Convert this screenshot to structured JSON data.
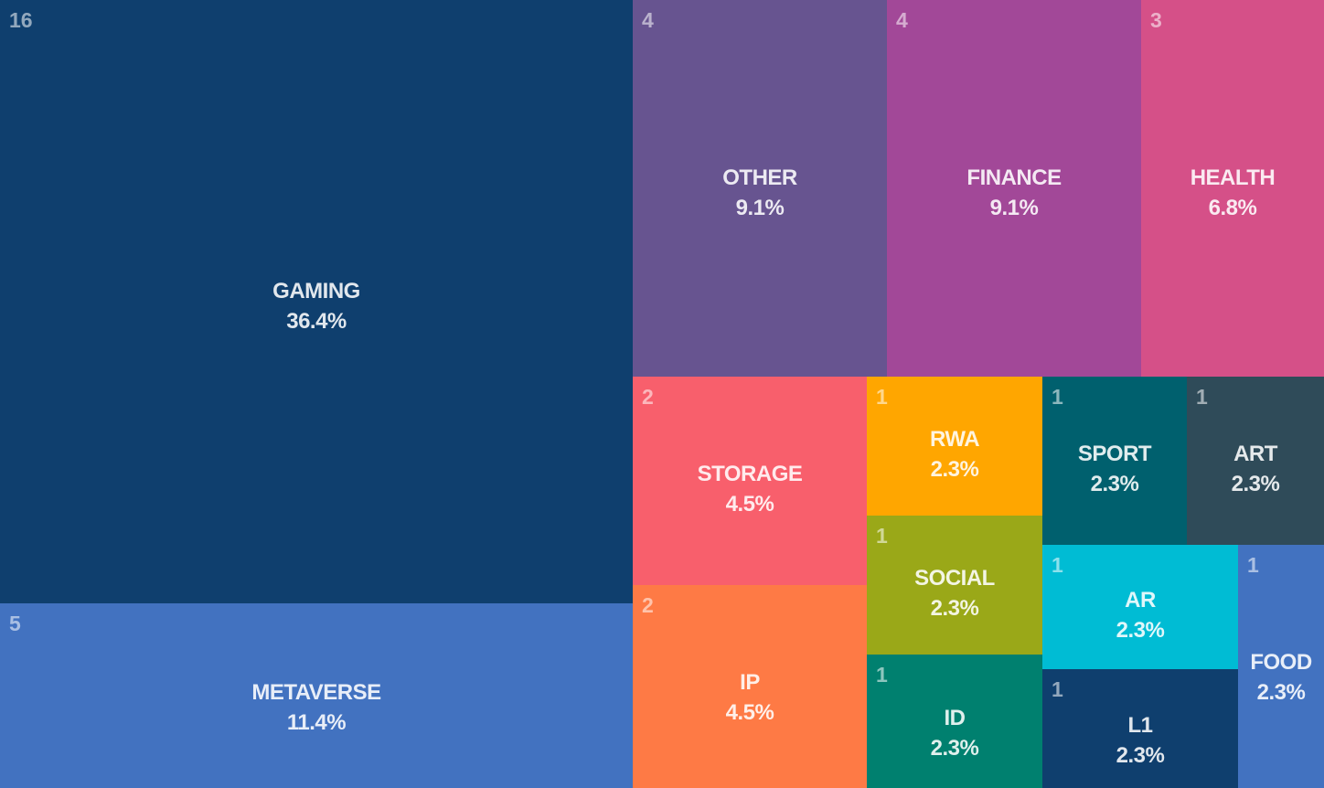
{
  "chart_data": {
    "type": "treemap",
    "title": "",
    "items": [
      {
        "name": "GAMING",
        "count": 16,
        "share": "36.4%",
        "color": "#0f3f6e"
      },
      {
        "name": "METAVERSE",
        "count": 5,
        "share": "11.4%",
        "color": "#4272c0"
      },
      {
        "name": "OTHER",
        "count": 4,
        "share": "9.1%",
        "color": "#675490"
      },
      {
        "name": "FINANCE",
        "count": 4,
        "share": "9.1%",
        "color": "#a24898"
      },
      {
        "name": "HEALTH",
        "count": 3,
        "share": "6.8%",
        "color": "#d55088"
      },
      {
        "name": "STORAGE",
        "count": 2,
        "share": "4.5%",
        "color": "#f85f6c"
      },
      {
        "name": "IP",
        "count": 2,
        "share": "4.5%",
        "color": "#fe7a45"
      },
      {
        "name": "RWA",
        "count": 1,
        "share": "2.3%",
        "color": "#ffa600"
      },
      {
        "name": "SOCIAL",
        "count": 1,
        "share": "2.3%",
        "color": "#9aa818"
      },
      {
        "name": "ID",
        "count": 1,
        "share": "2.3%",
        "color": "#00806f"
      },
      {
        "name": "SPORT",
        "count": 1,
        "share": "2.3%",
        "color": "#00606e"
      },
      {
        "name": "ART",
        "count": 1,
        "share": "2.3%",
        "color": "#2f4b59"
      },
      {
        "name": "AR",
        "count": 1,
        "share": "2.3%",
        "color": "#00bcd4"
      },
      {
        "name": "FOOD",
        "count": 1,
        "share": "2.3%",
        "color": "#4272c0"
      },
      {
        "name": "L1",
        "count": 1,
        "share": "2.3%",
        "color": "#0f3f6e"
      }
    ]
  }
}
